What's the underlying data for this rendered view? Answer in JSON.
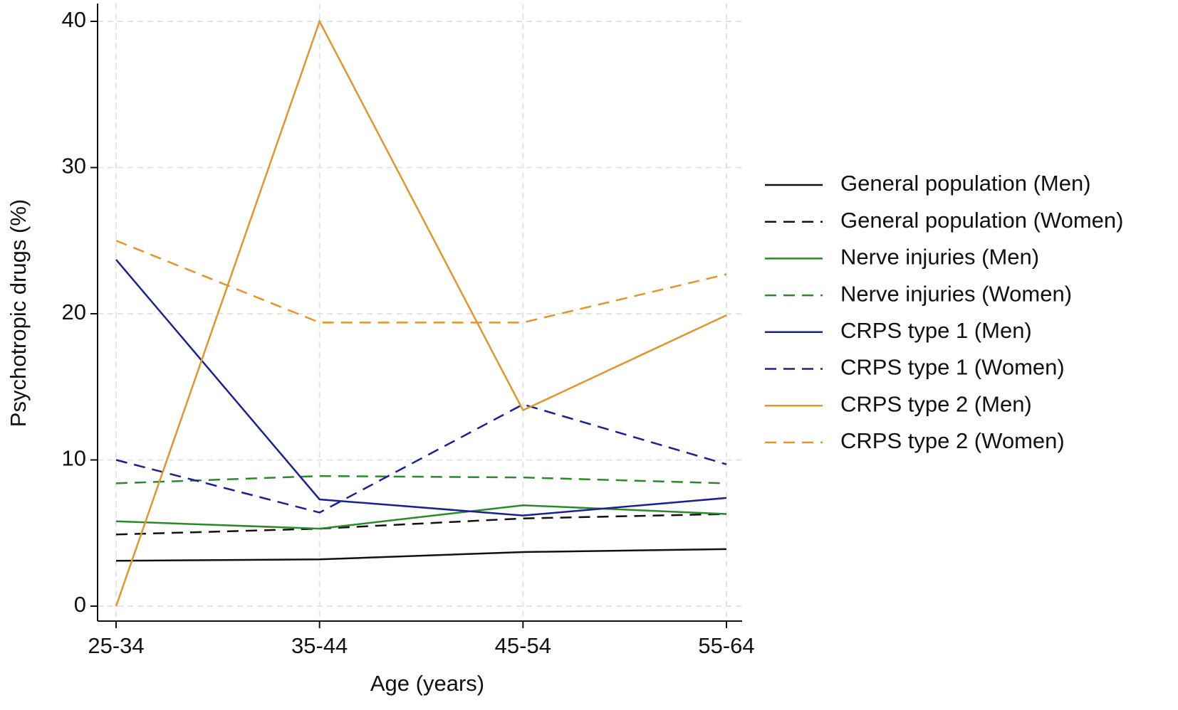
{
  "chart_data": {
    "type": "line",
    "xlabel": "Age (years)",
    "ylabel": "Psychotropic drugs (%)",
    "categories": [
      "25-34",
      "35-44",
      "45-54",
      "55-64"
    ],
    "ylim": [
      0,
      40
    ],
    "yticks": [
      0,
      10,
      20,
      30,
      40
    ],
    "grid": true,
    "legend": "right",
    "series": [
      {
        "name": "General population (Men)",
        "color": "#111111",
        "line_style": "solid",
        "values": [
          3.1,
          3.2,
          3.7,
          3.9
        ]
      },
      {
        "name": "General population (Women)",
        "color": "#111111",
        "line_style": "dashed",
        "values": [
          4.9,
          5.3,
          6.0,
          6.3
        ]
      },
      {
        "name": "Nerve injuries (Men)",
        "color": "#2a8a2a",
        "line_style": "solid",
        "values": [
          5.8,
          5.3,
          6.9,
          6.3
        ]
      },
      {
        "name": "Nerve injuries (Women)",
        "color": "#2a8a2a",
        "line_style": "dashed",
        "values": [
          8.4,
          8.9,
          8.8,
          8.4
        ]
      },
      {
        "name": "CRPS type 1 (Men)",
        "color": "#1c2090",
        "line_style": "solid",
        "values": [
          23.7,
          7.3,
          6.2,
          7.4
        ]
      },
      {
        "name": "CRPS type 1 (Women)",
        "color": "#1c2090",
        "line_style": "dashed",
        "values": [
          10.0,
          6.4,
          13.8,
          9.7
        ]
      },
      {
        "name": "CRPS type 2 (Men)",
        "color": "#e0962a",
        "line_style": "solid",
        "values": [
          0,
          40,
          13.4,
          19.9
        ]
      },
      {
        "name": "CRPS type 2 (Women)",
        "color": "#e0962a",
        "line_style": "dashed",
        "values": [
          25.0,
          19.4,
          19.4,
          22.7
        ]
      }
    ]
  }
}
